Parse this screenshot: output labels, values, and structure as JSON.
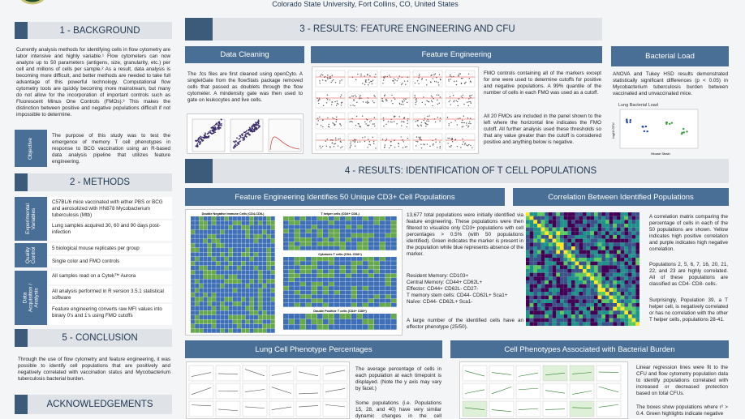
{
  "header": {
    "affiliation": "Colorado State University, Fort Collins, CO, United States"
  },
  "background": {
    "title": "1 - BACKGROUND",
    "text": "Currently analysis methods for identifying cells in flow cytometry are labor intensive and highly variable.¹ Flow cytometers can now analyze up to 50 parameters (antigens, size, granularity, etc.) per cell and millions of cells per sample.² As a result, data analysis is becoming more difficult, and better methods are needed to take full advantage of this powerful technology. Computational flow cytometry tools are quickly becoming more mainstream, but many do not allow for the incorporation of important controls such as Fluorescent Minus One Controls (FMOs).³ This makes the distinction between positive and negative populations difficult if not impossible to determine."
  },
  "objective": {
    "label": "Objective",
    "text": "The purpose of this study was to test the emergence of memory T cell phenotypes in response to BCG vaccination using an R-based data analysis pipeline that utilizes feature engineering."
  },
  "methods": {
    "title": "2 - METHODS",
    "rows": [
      {
        "label": "Experimental Variables",
        "items": [
          "C57BL/6 mice vaccinated with either PBS or BCG and aerosolized with HN878 Mycobacterium tuberculosis (Mtb)",
          "Lung samples acquired 30, 60 and 90 days post-infection"
        ]
      },
      {
        "label": "Quality Control",
        "items": [
          "5 biological mouse replicates per group",
          "Single color and FMO controls"
        ]
      },
      {
        "label": "Data Acquisition / Analysis",
        "items": [
          "All samples read on a Cytek™ Aurora",
          "All analysis performed in R version 3.5.1 statistical software",
          "Feature engineering converts raw MFI values into binary 0's and 1's using FMO cutoffs"
        ]
      }
    ]
  },
  "conclusion": {
    "title": "5 - CONCLUSION",
    "text": "Through the use of flow cytometry and feature engineering, it was possible to identify cell populations that are positively and negatively correlated with vaccination status and Mycobacterium tuberculosis bacterial burden."
  },
  "acknowledgements": {
    "title": "ACKNOWLEDGEMENTS"
  },
  "results1": {
    "title": "3 - RESULTS: FEATURE ENGINEERING AND CFU",
    "data_cleaning": {
      "title": "Data Cleaning",
      "text": "The .fcs files are first cleaned using openCyto. A singletGate from the flowStats package removed cells that passed as doublets through the flow cytometer. A mindensity gate was then used to gate on leukocytes and live cells."
    },
    "feature_engineering": {
      "title": "Feature Engineering",
      "text1": "FMO controls containing all of the markers except for one were used to determine cutoffs for positive and negative populations. A 99% quantile of the number of cells in each FMO was used as a cutoff.",
      "text2": "All 20 FMOs are included in the panel shown to the left where the horizontal line indicates the FMO cutoff. All further analysis used these thresholds so that any value greater than the cutoff is considered positive and anything below is negative."
    },
    "bacterial_load": {
      "title": "Bacterial Load",
      "text": "ANOVA and Tukey HSD results demonstrated statistically significant differences (p < 0.05) in Mycobacterium tuberculosis burden between vaccinated and unvaccinated mice.",
      "chart_title": "Lung Bacterial Load",
      "x_label": "Mouse Strain",
      "y_label": "log10 CFU"
    }
  },
  "results2": {
    "title": "4 - RESULTS: IDENTIFICATION OF T CELL POPULATIONS",
    "populations": {
      "title": "Feature Engineering Identifies 50 Unique CD3+ Cell Populations",
      "heatmaps": [
        "Double Negative Immune Cells (CD4-CD8-)",
        "T helper cells (CD4+ CD8-)",
        "Cytotoxic T cells (CD4- CD8+)",
        "Double Positive T cells (CD4+ CD8+)"
      ],
      "text1": "13,677 total populations were initially identified via feature engineering. These populations were then filtered to visualize only CD3+ populations with cell percentages > 0.5% (with 50 populations identified). Green indicates the marker is present in the population while blue represents absence of the marker.",
      "phenotypes": [
        "Resident Memory: CD103+",
        "Central Memory: CD44+ CD62L+",
        "Effector: CD44+ CD62L- CD27-",
        "T memory stem cells: CD44- CD62L+ Sca1+",
        "Naïve: CD44- CD62L+ Sca1-"
      ],
      "text2": "A large number of the identified cells have an effector phenotype (25/50)."
    },
    "correlation": {
      "title": "Correlation Between Identified Populations",
      "text1": "A correlation matrix comparing the percentage of cells in each of the 50 populations are shown. Yellow indicates high positive correlation and purple indicates high negative correlation.",
      "text2": "Populations 2, 5, 6, 7, 16, 20, 21, 22, and 23 are highly correlated. All of these populations are classified as CD4- CD8- cells.",
      "text3": "Surprisingly, Population 39, a T helper cell, is negatively correlated or has no correlation with the other T helper cells, populations 28-41."
    },
    "percentages": {
      "title": "Lung Cell Phenotype Percentages",
      "text1": "The average percentage of cells in each population at each timepoint is displayed. (Note the y axis may vary by facet.)",
      "text2": "Some populations (i.e. Populations 15, 28, and 40) have very similar dynamic changes in the cell percentage over"
    },
    "burden": {
      "title": "Cell Phenotypes Associated with Bacterial Burden",
      "text1": "Linear regression lines were fit to the CFU and flow cytometry population data to identify populations correlated with increased or decreased protection based on total CFUs.",
      "text2": "The boxes show populations where r² > 0.4. Green highlights indicate negative"
    }
  }
}
